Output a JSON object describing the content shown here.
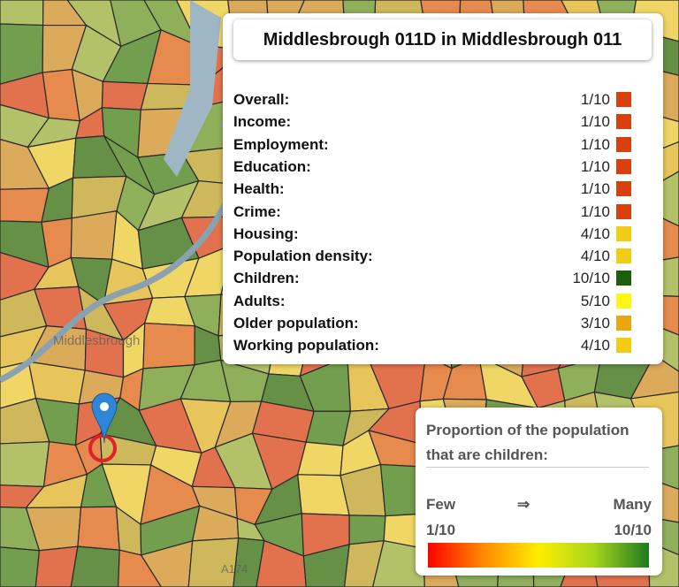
{
  "map": {
    "labels": [
      "Middlesbrough",
      "A174"
    ]
  },
  "panel": {
    "title": "Middlesbrough 011D in Middlesbrough 011",
    "rows": [
      {
        "label": "Overall:",
        "score": "1/10",
        "color": "#d9400d"
      },
      {
        "label": "Income:",
        "score": "1/10",
        "color": "#d9400d"
      },
      {
        "label": "Employment:",
        "score": "1/10",
        "color": "#d9400d"
      },
      {
        "label": "Education:",
        "score": "1/10",
        "color": "#d9400d"
      },
      {
        "label": "Health:",
        "score": "1/10",
        "color": "#d9400d"
      },
      {
        "label": "Crime:",
        "score": "1/10",
        "color": "#d9400d"
      },
      {
        "label": "Housing:",
        "score": "4/10",
        "color": "#f2cc14"
      },
      {
        "label": "Population density:",
        "score": "4/10",
        "color": "#f2cc14"
      },
      {
        "label": "Children:",
        "score": "10/10",
        "color": "#1b5e0c"
      },
      {
        "label": "Adults:",
        "score": "5/10",
        "color": "#fbf614"
      },
      {
        "label": "Older population:",
        "score": "3/10",
        "color": "#eba50f"
      },
      {
        "label": "Working population:",
        "score": "4/10",
        "color": "#f2cc14"
      }
    ]
  },
  "legend": {
    "title": "Proportion of the population that are children:",
    "low_text": "Few",
    "arrow": "⇒",
    "high_text": "Many",
    "min": "1/10",
    "max": "10/10",
    "colors": [
      "#ff0000",
      "#ff8a00",
      "#ffee00",
      "#a6d61c",
      "#1f7a1f"
    ]
  }
}
